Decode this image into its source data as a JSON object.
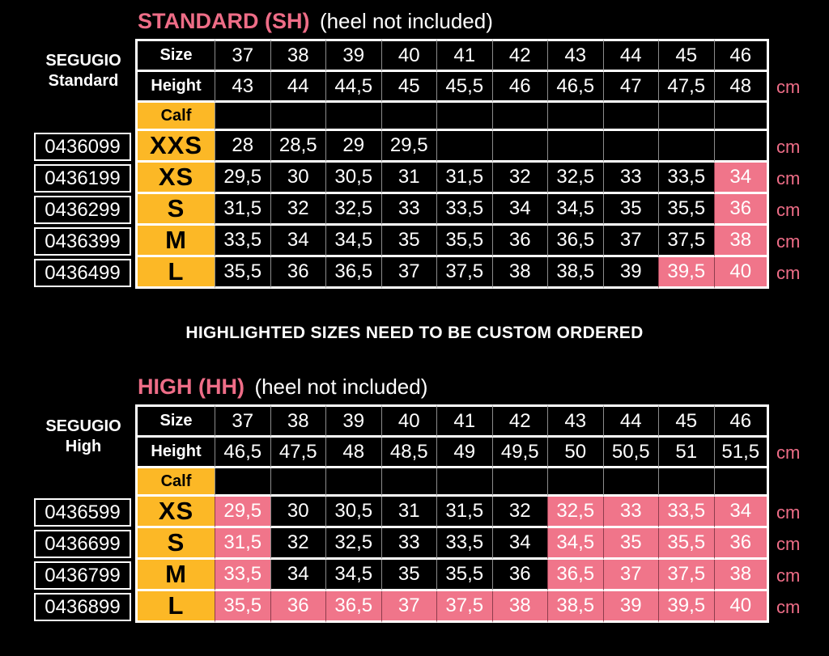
{
  "palette": {
    "background": "#000000",
    "accent_pink": "#ee6d87",
    "highlight_pink": "#f0758a",
    "calf_yellow": "#fcb826",
    "text_white": "#ffffff"
  },
  "unit": "cm",
  "note": "HIGHLIGHTED SIZES NEED TO BE CUSTOM ORDERED",
  "standard": {
    "title": "STANDARD (SH)",
    "subtitle": "(heel not included)",
    "side_label": {
      "line1": "SEGUGIO",
      "line2": "Standard"
    },
    "header": {
      "size_label": "Size",
      "height_label": "Height",
      "calf_label": "Calf"
    },
    "sizes": [
      "37",
      "38",
      "39",
      "40",
      "41",
      "42",
      "43",
      "44",
      "45",
      "46"
    ],
    "heights": [
      "43",
      "44",
      "44,5",
      "45",
      "45,5",
      "46",
      "46,5",
      "47",
      "47,5",
      "48"
    ],
    "rows": [
      {
        "code": "0436099",
        "calf": "XXS",
        "values": [
          "28",
          "28,5",
          "29",
          "29,5",
          "",
          "",
          "",
          "",
          "",
          ""
        ],
        "highlighted": [
          0,
          0,
          0,
          0,
          0,
          0,
          0,
          0,
          0,
          0
        ]
      },
      {
        "code": "0436199",
        "calf": "XS",
        "values": [
          "29,5",
          "30",
          "30,5",
          "31",
          "31,5",
          "32",
          "32,5",
          "33",
          "33,5",
          "34"
        ],
        "highlighted": [
          0,
          0,
          0,
          0,
          0,
          0,
          0,
          0,
          0,
          1
        ]
      },
      {
        "code": "0436299",
        "calf": "S",
        "values": [
          "31,5",
          "32",
          "32,5",
          "33",
          "33,5",
          "34",
          "34,5",
          "35",
          "35,5",
          "36"
        ],
        "highlighted": [
          0,
          0,
          0,
          0,
          0,
          0,
          0,
          0,
          0,
          1
        ]
      },
      {
        "code": "0436399",
        "calf": "M",
        "values": [
          "33,5",
          "34",
          "34,5",
          "35",
          "35,5",
          "36",
          "36,5",
          "37",
          "37,5",
          "38"
        ],
        "highlighted": [
          0,
          0,
          0,
          0,
          0,
          0,
          0,
          0,
          0,
          1
        ]
      },
      {
        "code": "0436499",
        "calf": "L",
        "values": [
          "35,5",
          "36",
          "36,5",
          "37",
          "37,5",
          "38",
          "38,5",
          "39",
          "39,5",
          "40"
        ],
        "highlighted": [
          0,
          0,
          0,
          0,
          0,
          0,
          0,
          0,
          1,
          1
        ]
      }
    ]
  },
  "high": {
    "title": "HIGH (HH)",
    "subtitle": "(heel not included)",
    "side_label": {
      "line1": "SEGUGIO",
      "line2": "High"
    },
    "header": {
      "size_label": "Size",
      "height_label": "Height",
      "calf_label": "Calf"
    },
    "sizes": [
      "37",
      "38",
      "39",
      "40",
      "41",
      "42",
      "43",
      "44",
      "45",
      "46"
    ],
    "heights": [
      "46,5",
      "47,5",
      "48",
      "48,5",
      "49",
      "49,5",
      "50",
      "50,5",
      "51",
      "51,5"
    ],
    "rows": [
      {
        "code": "0436599",
        "calf": "XS",
        "values": [
          "29,5",
          "30",
          "30,5",
          "31",
          "31,5",
          "32",
          "32,5",
          "33",
          "33,5",
          "34"
        ],
        "highlighted": [
          1,
          0,
          0,
          0,
          0,
          0,
          1,
          1,
          1,
          1
        ]
      },
      {
        "code": "0436699",
        "calf": "S",
        "values": [
          "31,5",
          "32",
          "32,5",
          "33",
          "33,5",
          "34",
          "34,5",
          "35",
          "35,5",
          "36"
        ],
        "highlighted": [
          1,
          0,
          0,
          0,
          0,
          0,
          1,
          1,
          1,
          1
        ]
      },
      {
        "code": "0436799",
        "calf": "M",
        "values": [
          "33,5",
          "34",
          "34,5",
          "35",
          "35,5",
          "36",
          "36,5",
          "37",
          "37,5",
          "38"
        ],
        "highlighted": [
          1,
          0,
          0,
          0,
          0,
          0,
          1,
          1,
          1,
          1
        ]
      },
      {
        "code": "0436899",
        "calf": "L",
        "values": [
          "35,5",
          "36",
          "36,5",
          "37",
          "37,5",
          "38",
          "38,5",
          "39",
          "39,5",
          "40"
        ],
        "highlighted": [
          1,
          1,
          1,
          1,
          1,
          1,
          1,
          1,
          1,
          1
        ]
      }
    ]
  }
}
